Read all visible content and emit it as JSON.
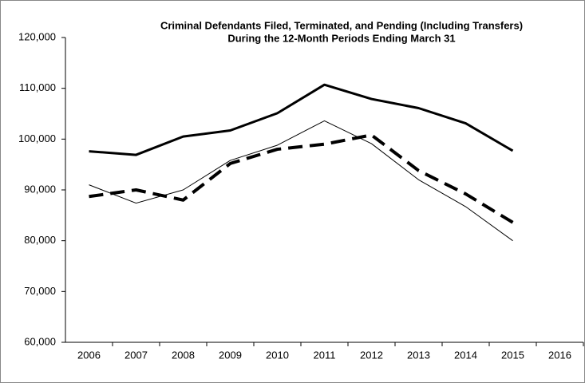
{
  "chart_data": {
    "type": "line",
    "title": "Criminal Defendants Filed, Terminated, and Pending (Including Transfers)",
    "subtitle": "During the 12-Month Periods Ending March 31",
    "categories": [
      "2006",
      "2007",
      "2008",
      "2009",
      "2010",
      "2011",
      "2012",
      "2013",
      "2014",
      "2015",
      "2016"
    ],
    "series": [
      {
        "color": "#000000",
        "width": 3,
        "dash": "none",
        "values": [
          97600,
          96900,
          100500,
          101700,
          105100,
          110700,
          107900,
          106100,
          103100,
          97700,
          null
        ]
      },
      {
        "color": "#000000",
        "width": 1,
        "dash": "none",
        "values": [
          91000,
          87400,
          90000,
          95800,
          98800,
          103600,
          99100,
          92000,
          86700,
          80000,
          null
        ]
      },
      {
        "color": "#000000",
        "width": 4,
        "dash": "18 9",
        "values": [
          88700,
          90000,
          88000,
          95200,
          98000,
          99000,
          100800,
          93800,
          89200,
          83600,
          null
        ]
      }
    ],
    "ylim": [
      60000,
      120000
    ],
    "yticks": [
      {
        "value": 60000,
        "label": "60,000"
      },
      {
        "value": 70000,
        "label": "70,000"
      },
      {
        "value": 80000,
        "label": "80,000"
      },
      {
        "value": 90000,
        "label": "90,000"
      },
      {
        "value": 100000,
        "label": "100,000"
      },
      {
        "value": 110000,
        "label": "110,000"
      },
      {
        "value": 120000,
        "label": "120,000"
      }
    ],
    "grid": false
  }
}
